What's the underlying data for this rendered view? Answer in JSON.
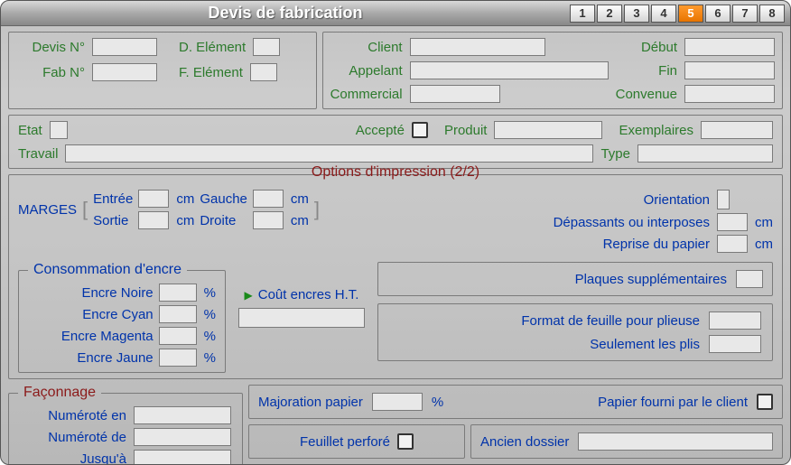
{
  "title": "Devis de fabrication",
  "pager": {
    "items": [
      "1",
      "2",
      "3",
      "4",
      "5",
      "6",
      "7",
      "8"
    ],
    "active": 5
  },
  "header": {
    "devis_no_label": "Devis N°",
    "d_element_label": "D. Elément",
    "fab_no_label": "Fab N°",
    "f_element_label": "F. Elément",
    "client_label": "Client",
    "appelant_label": "Appelant",
    "commercial_label": "Commercial",
    "debut_label": "Début",
    "fin_label": "Fin",
    "convenue_label": "Convenue"
  },
  "status": {
    "etat_label": "Etat",
    "accepte_label": "Accepté",
    "produit_label": "Produit",
    "exemplaires_label": "Exemplaires",
    "travail_label": "Travail",
    "type_label": "Type"
  },
  "options": {
    "title": "Options d'impression (2/2)",
    "marges_label": "MARGES",
    "entree_label": "Entrée",
    "sortie_label": "Sortie",
    "gauche_label": "Gauche",
    "droite_label": "Droite",
    "cm": "cm",
    "orientation_label": "Orientation",
    "depassants_label": "Dépassants ou interposes",
    "reprise_label": "Reprise du papier"
  },
  "ink": {
    "legend": "Consommation d'encre",
    "noire": "Encre Noire",
    "cyan": "Encre Cyan",
    "magenta": "Encre Magenta",
    "jaune": "Encre Jaune",
    "percent": "%",
    "cout_label": "Coût encres H.T."
  },
  "plaques": {
    "plaques_label": "Plaques supplémentaires",
    "format_label": "Format de feuille pour plieuse",
    "plis_label": "Seulement les plis"
  },
  "faconnage": {
    "legend": "Façonnage",
    "numerote_en": "Numéroté en",
    "numerote_de": "Numéroté de",
    "jusqua": "Jusqu'à"
  },
  "paper": {
    "majoration_label": "Majoration papier",
    "percent": "%",
    "fourni_label": "Papier fourni par le client",
    "feuillet_label": "Feuillet perforé",
    "ancien_label": "Ancien dossier"
  }
}
